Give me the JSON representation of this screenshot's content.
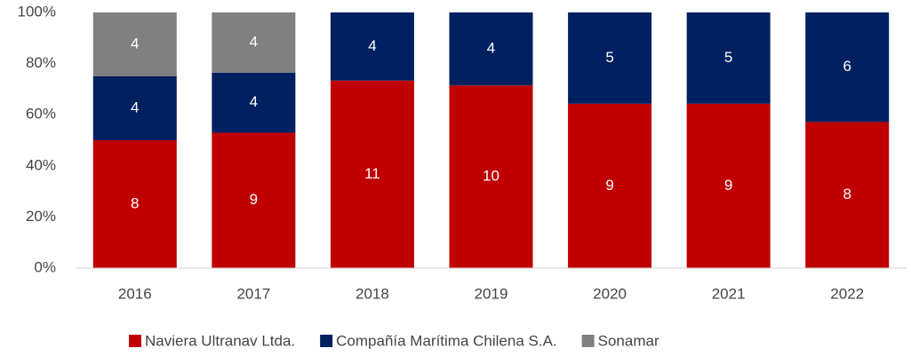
{
  "chart_data": {
    "type": "bar",
    "stacked": "percent",
    "categories": [
      "2016",
      "2017",
      "2018",
      "2019",
      "2020",
      "2021",
      "2022"
    ],
    "series": [
      {
        "name": "Naviera Ultranav Ltda.",
        "color": "#c00000",
        "values": [
          8,
          9,
          11,
          10,
          9,
          9,
          8
        ]
      },
      {
        "name": "Compañía Marítima Chilena S.A.",
        "color": "#002060",
        "values": [
          4,
          4,
          4,
          4,
          5,
          5,
          6
        ]
      },
      {
        "name": "Sonamar",
        "color": "#808080",
        "values": [
          4,
          4,
          null,
          null,
          null,
          null,
          null
        ]
      }
    ],
    "ylim": [
      0,
      100
    ],
    "yticks": [
      {
        "value": 0,
        "label": "0%"
      },
      {
        "value": 20,
        "label": "20%"
      },
      {
        "value": 40,
        "label": "40%"
      },
      {
        "value": 60,
        "label": "60%"
      },
      {
        "value": 80,
        "label": "80%"
      },
      {
        "value": 100,
        "label": "100%"
      }
    ],
    "grid": false,
    "legend": "bottom"
  }
}
